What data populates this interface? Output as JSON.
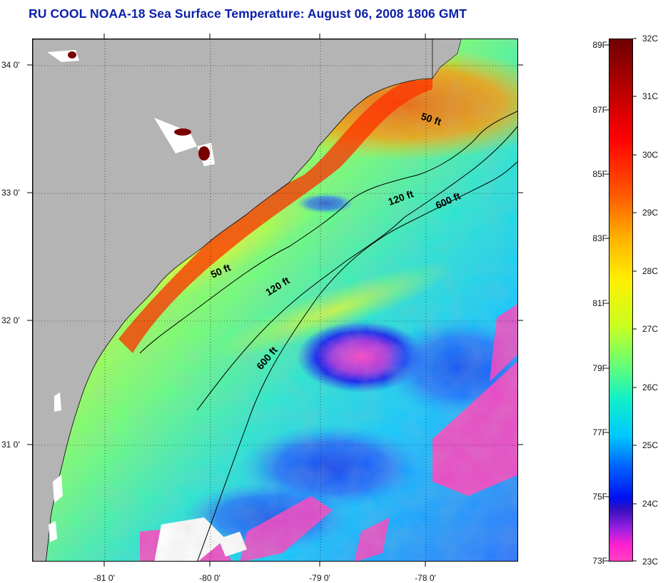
{
  "title": "RU COOL  NOAA-18  Sea Surface Temperature:  August 06, 2008 1806 GMT",
  "latitude_labels": [
    "34 0'",
    "33 0'",
    "32 0'",
    "31 0'"
  ],
  "longitude_labels": [
    "-81 0'",
    "-80 0'",
    "-79 0'",
    "-78 0'"
  ],
  "contour_labels": [
    "50 ft",
    "120 ft",
    "600 ft",
    "50 ft",
    "120 ft",
    "600 ft"
  ],
  "colorbar": {
    "fahrenheit": [
      "89F",
      "87F",
      "85F",
      "83F",
      "81F",
      "79F",
      "77F",
      "75F",
      "73F"
    ],
    "celsius": [
      "32C",
      "31C",
      "30C",
      "29C",
      "28C",
      "27C",
      "26C",
      "25C",
      "24C",
      "23C"
    ]
  },
  "colors": {
    "title": "#0a1fa8",
    "land": "#b4b4b4",
    "cloud": "#ffffff",
    "contour": "#000000"
  }
}
